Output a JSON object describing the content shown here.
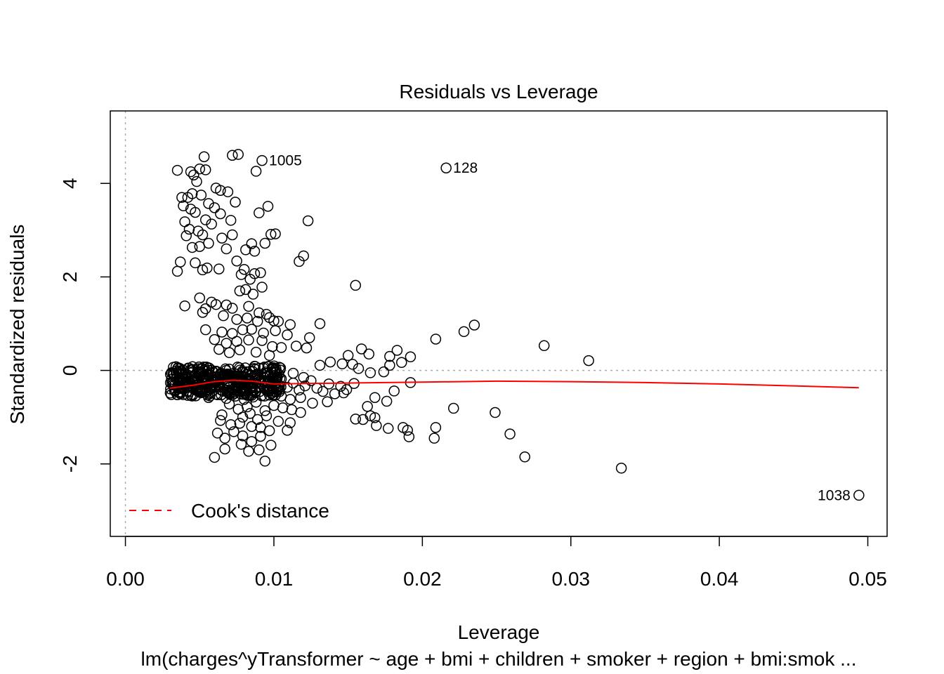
{
  "chart_data": {
    "type": "scatter",
    "title": "Residuals vs Leverage",
    "xlabel": "Leverage",
    "ylabel": "Standardized residuals",
    "subtitle": "lm(charges^yTransformer ~ age + bmi + children + smoker + region + bmi:smok ...",
    "xlim": [
      -0.00102,
      0.0513
    ],
    "ylim": [
      -3.55,
      5.55
    ],
    "xticks": [
      0.0,
      0.01,
      0.02,
      0.03,
      0.04,
      0.05
    ],
    "xtick_labels": [
      "0.00",
      "0.01",
      "0.02",
      "0.03",
      "0.04",
      "0.05"
    ],
    "yticks": [
      -2,
      0,
      2,
      4
    ],
    "ytick_labels": [
      "-2",
      "0",
      "2",
      "4"
    ],
    "legend": {
      "position": "bottom-left",
      "label": "Cook's distance",
      "color": "#ff0000"
    },
    "reference_lines": {
      "x": 0,
      "y": 0,
      "style": "dotted",
      "color": "#aaaaaa"
    },
    "point_labels": [
      {
        "label": "1005",
        "x": 0.0092,
        "y": 4.49
      },
      {
        "label": "128",
        "x": 0.0216,
        "y": 4.33
      },
      {
        "label": "1038",
        "x": 0.0494,
        "y": -2.67
      }
    ],
    "smoother": {
      "name": "",
      "color": "#ff0000",
      "x": [
        0.003,
        0.0045,
        0.006,
        0.0072,
        0.0085,
        0.01,
        0.012,
        0.015,
        0.02,
        0.025,
        0.03,
        0.035,
        0.04,
        0.045,
        0.0494
      ],
      "y": [
        -0.38,
        -0.32,
        -0.24,
        -0.21,
        -0.23,
        -0.29,
        -0.28,
        -0.27,
        -0.25,
        -0.23,
        -0.24,
        -0.26,
        -0.29,
        -0.33,
        -0.37
      ]
    },
    "points": [
      [
        0.0092,
        4.49
      ],
      [
        0.0216,
        4.33
      ],
      [
        0.0494,
        -2.67
      ],
      [
        0.0053,
        4.57
      ],
      [
        0.0072,
        4.6
      ],
      [
        0.0076,
        4.62
      ],
      [
        0.0035,
        4.28
      ],
      [
        0.0044,
        4.25
      ],
      [
        0.005,
        4.31
      ],
      [
        0.0054,
        4.29
      ],
      [
        0.0088,
        4.26
      ],
      [
        0.0046,
        4.18
      ],
      [
        0.0048,
        4.04
      ],
      [
        0.0038,
        3.7
      ],
      [
        0.0042,
        3.7
      ],
      [
        0.0045,
        3.78
      ],
      [
        0.0051,
        3.75
      ],
      [
        0.0061,
        3.9
      ],
      [
        0.0064,
        3.85
      ],
      [
        0.0069,
        3.82
      ],
      [
        0.0039,
        3.52
      ],
      [
        0.0044,
        3.45
      ],
      [
        0.0047,
        3.38
      ],
      [
        0.0056,
        3.57
      ],
      [
        0.006,
        3.48
      ],
      [
        0.0064,
        3.35
      ],
      [
        0.0074,
        3.6
      ],
      [
        0.009,
        3.37
      ],
      [
        0.0096,
        3.51
      ],
      [
        0.004,
        3.18
      ],
      [
        0.0043,
        3.02
      ],
      [
        0.0049,
        2.98
      ],
      [
        0.0054,
        3.22
      ],
      [
        0.0058,
        3.13
      ],
      [
        0.0071,
        3.21
      ],
      [
        0.0123,
        3.2
      ],
      [
        0.0041,
        2.88
      ],
      [
        0.0052,
        2.9
      ],
      [
        0.0056,
        2.72
      ],
      [
        0.0065,
        2.83
      ],
      [
        0.0072,
        2.9
      ],
      [
        0.0085,
        2.71
      ],
      [
        0.0098,
        2.91
      ],
      [
        0.0101,
        2.92
      ],
      [
        0.0045,
        2.63
      ],
      [
        0.005,
        2.65
      ],
      [
        0.0068,
        2.6
      ],
      [
        0.0081,
        2.58
      ],
      [
        0.0087,
        2.55
      ],
      [
        0.0094,
        2.72
      ],
      [
        0.012,
        2.45
      ],
      [
        0.0117,
        2.33
      ],
      [
        0.0037,
        2.32
      ],
      [
        0.0047,
        2.3
      ],
      [
        0.0055,
        2.19
      ],
      [
        0.0063,
        2.17
      ],
      [
        0.0075,
        2.34
      ],
      [
        0.008,
        2.16
      ],
      [
        0.0087,
        2.07
      ],
      [
        0.0091,
        2.09
      ],
      [
        0.0035,
        2.12
      ],
      [
        0.0052,
        2.15
      ],
      [
        0.0078,
        2.05
      ],
      [
        0.0084,
        1.95
      ],
      [
        0.0155,
        1.82
      ],
      [
        0.005,
        1.55
      ],
      [
        0.0058,
        1.46
      ],
      [
        0.0068,
        1.4
      ],
      [
        0.0077,
        1.7
      ],
      [
        0.0081,
        1.73
      ],
      [
        0.0086,
        1.63
      ],
      [
        0.0092,
        1.78
      ],
      [
        0.004,
        1.38
      ],
      [
        0.0054,
        1.32
      ],
      [
        0.0061,
        1.41
      ],
      [
        0.0072,
        1.33
      ],
      [
        0.0083,
        1.37
      ],
      [
        0.009,
        1.23
      ],
      [
        0.0095,
        1.2
      ],
      [
        0.01,
        1.06
      ],
      [
        0.0103,
        1.05
      ],
      [
        0.0052,
        1.24
      ],
      [
        0.0066,
        1.17
      ],
      [
        0.0075,
        1.09
      ],
      [
        0.0082,
        1.12
      ],
      [
        0.0089,
        1.05
      ],
      [
        0.0097,
        1.13
      ],
      [
        0.0111,
        0.98
      ],
      [
        0.0131,
        1.0
      ],
      [
        0.0235,
        0.97
      ],
      [
        0.0054,
        0.87
      ],
      [
        0.0065,
        0.82
      ],
      [
        0.0072,
        0.79
      ],
      [
        0.0079,
        0.87
      ],
      [
        0.0085,
        0.88
      ],
      [
        0.0093,
        0.8
      ],
      [
        0.0101,
        0.85
      ],
      [
        0.0109,
        0.76
      ],
      [
        0.0124,
        0.7
      ],
      [
        0.0228,
        0.83
      ],
      [
        0.006,
        0.66
      ],
      [
        0.0068,
        0.58
      ],
      [
        0.0075,
        0.62
      ],
      [
        0.0083,
        0.65
      ],
      [
        0.0092,
        0.64
      ],
      [
        0.0099,
        0.51
      ],
      [
        0.0105,
        0.49
      ],
      [
        0.0115,
        0.52
      ],
      [
        0.0122,
        0.48
      ],
      [
        0.0209,
        0.67
      ],
      [
        0.0282,
        0.53
      ],
      [
        0.0063,
        0.45
      ],
      [
        0.007,
        0.38
      ],
      [
        0.0077,
        0.44
      ],
      [
        0.0088,
        0.39
      ],
      [
        0.0097,
        0.32
      ],
      [
        0.015,
        0.32
      ],
      [
        0.0159,
        0.46
      ],
      [
        0.0164,
        0.35
      ],
      [
        0.0178,
        0.3
      ],
      [
        0.0183,
        0.43
      ],
      [
        0.0192,
        0.29
      ],
      [
        0.0131,
        0.11
      ],
      [
        0.0138,
        0.18
      ],
      [
        0.0146,
        0.14
      ],
      [
        0.0153,
        0.13
      ],
      [
        0.0157,
        0.04
      ],
      [
        0.0165,
        -0.05
      ],
      [
        0.0174,
        -0.03
      ],
      [
        0.0178,
        0.11
      ],
      [
        0.0186,
        0.17
      ],
      [
        0.0312,
        0.21
      ],
      [
        0.0034,
        -0.42
      ],
      [
        0.0036,
        -0.32
      ],
      [
        0.0038,
        -0.38
      ],
      [
        0.004,
        -0.29
      ],
      [
        0.0042,
        -0.44
      ],
      [
        0.0043,
        -0.33
      ],
      [
        0.0045,
        -0.24
      ],
      [
        0.0046,
        -0.4
      ],
      [
        0.0048,
        -0.31
      ],
      [
        0.0049,
        -0.2
      ],
      [
        0.0051,
        -0.36
      ],
      [
        0.0052,
        -0.44
      ],
      [
        0.0054,
        -0.27
      ],
      [
        0.0055,
        -0.17
      ],
      [
        0.0057,
        -0.35
      ],
      [
        0.0058,
        -0.46
      ],
      [
        0.006,
        -0.25
      ],
      [
        0.0061,
        -0.14
      ],
      [
        0.0063,
        -0.31
      ],
      [
        0.0064,
        -0.41
      ],
      [
        0.0066,
        -0.19
      ],
      [
        0.0067,
        -0.09
      ],
      [
        0.0069,
        -0.28
      ],
      [
        0.007,
        -0.37
      ],
      [
        0.0072,
        -0.15
      ],
      [
        0.0073,
        -0.06
      ],
      [
        0.0075,
        -0.24
      ],
      [
        0.0076,
        -0.33
      ],
      [
        0.0078,
        -0.12
      ],
      [
        0.0079,
        -0.45
      ],
      [
        0.0081,
        -0.21
      ],
      [
        0.0082,
        -0.3
      ],
      [
        0.0084,
        -0.1
      ],
      [
        0.0085,
        -0.38
      ],
      [
        0.0087,
        -0.18
      ],
      [
        0.0088,
        -0.27
      ],
      [
        0.009,
        -0.36
      ],
      [
        0.0037,
        -0.5
      ],
      [
        0.0044,
        -0.53
      ],
      [
        0.005,
        -0.47
      ],
      [
        0.0056,
        -0.58
      ],
      [
        0.0062,
        -0.52
      ],
      [
        0.0068,
        -0.6
      ],
      [
        0.0074,
        -0.55
      ],
      [
        0.008,
        -0.62
      ],
      [
        0.0086,
        -0.57
      ],
      [
        0.0093,
        -0.24
      ],
      [
        0.0097,
        -0.41
      ],
      [
        0.0101,
        -0.3
      ],
      [
        0.0105,
        -0.18
      ],
      [
        0.0109,
        -0.36
      ],
      [
        0.0113,
        -0.27
      ],
      [
        0.0117,
        -0.42
      ],
      [
        0.0121,
        -0.33
      ],
      [
        0.0125,
        -0.22
      ],
      [
        0.0129,
        -0.38
      ],
      [
        0.0133,
        -0.45
      ],
      [
        0.0137,
        -0.29
      ],
      [
        0.0141,
        -0.5
      ],
      [
        0.0145,
        -0.34
      ],
      [
        0.0149,
        -0.41
      ],
      [
        0.0154,
        -0.28
      ],
      [
        0.0113,
        -0.06
      ],
      [
        0.012,
        -0.15
      ],
      [
        0.0105,
        -0.55
      ],
      [
        0.0111,
        -0.62
      ],
      [
        0.0118,
        -0.58
      ],
      [
        0.0126,
        -0.7
      ],
      [
        0.0136,
        -0.67
      ],
      [
        0.0147,
        -0.48
      ],
      [
        0.0168,
        -0.58
      ],
      [
        0.0176,
        -0.66
      ],
      [
        0.0181,
        -0.44
      ],
      [
        0.0192,
        -0.26
      ],
      [
        0.007,
        -0.72
      ],
      [
        0.0076,
        -0.83
      ],
      [
        0.0082,
        -0.78
      ],
      [
        0.0088,
        -0.68
      ],
      [
        0.0094,
        -0.86
      ],
      [
        0.01,
        -0.75
      ],
      [
        0.0106,
        -0.8
      ],
      [
        0.0112,
        -0.84
      ],
      [
        0.0118,
        -0.9
      ],
      [
        0.0065,
        -0.95
      ],
      [
        0.0084,
        -0.92
      ],
      [
        0.0079,
        -1.0
      ],
      [
        0.0089,
        -1.05
      ],
      [
        0.0095,
        -0.97
      ],
      [
        0.0103,
        -1.09
      ],
      [
        0.0111,
        -1.12
      ],
      [
        0.0163,
        -0.77
      ],
      [
        0.0165,
        -0.97
      ],
      [
        0.0168,
        -1.01
      ],
      [
        0.0221,
        -0.81
      ],
      [
        0.0249,
        -0.9
      ],
      [
        0.0064,
        -1.07
      ],
      [
        0.0071,
        -1.16
      ],
      [
        0.0077,
        -1.13
      ],
      [
        0.0085,
        -1.2
      ],
      [
        0.0091,
        -1.22
      ],
      [
        0.0097,
        -1.29
      ],
      [
        0.0109,
        -1.28
      ],
      [
        0.0155,
        -1.04
      ],
      [
        0.016,
        -1.05
      ],
      [
        0.0169,
        -1.18
      ],
      [
        0.0177,
        -1.24
      ],
      [
        0.0187,
        -1.22
      ],
      [
        0.019,
        -1.28
      ],
      [
        0.0209,
        -1.22
      ],
      [
        0.0259,
        -1.36
      ],
      [
        0.0062,
        -1.34
      ],
      [
        0.0067,
        -1.45
      ],
      [
        0.0073,
        -1.31
      ],
      [
        0.0079,
        -1.4
      ],
      [
        0.0085,
        -1.52
      ],
      [
        0.0091,
        -1.41
      ],
      [
        0.0098,
        -1.6
      ],
      [
        0.0191,
        -1.42
      ],
      [
        0.0208,
        -1.45
      ],
      [
        0.006,
        -1.86
      ],
      [
        0.0067,
        -1.68
      ],
      [
        0.0078,
        -1.58
      ],
      [
        0.0083,
        -1.73
      ],
      [
        0.009,
        -1.7
      ],
      [
        0.0094,
        -1.94
      ],
      [
        0.0269,
        -1.85
      ],
      [
        0.0334,
        -2.09
      ]
    ],
    "dense_cluster": {
      "x_range": [
        0.003,
        0.0105
      ],
      "y_range": [
        -0.55,
        0.1
      ]
    }
  }
}
